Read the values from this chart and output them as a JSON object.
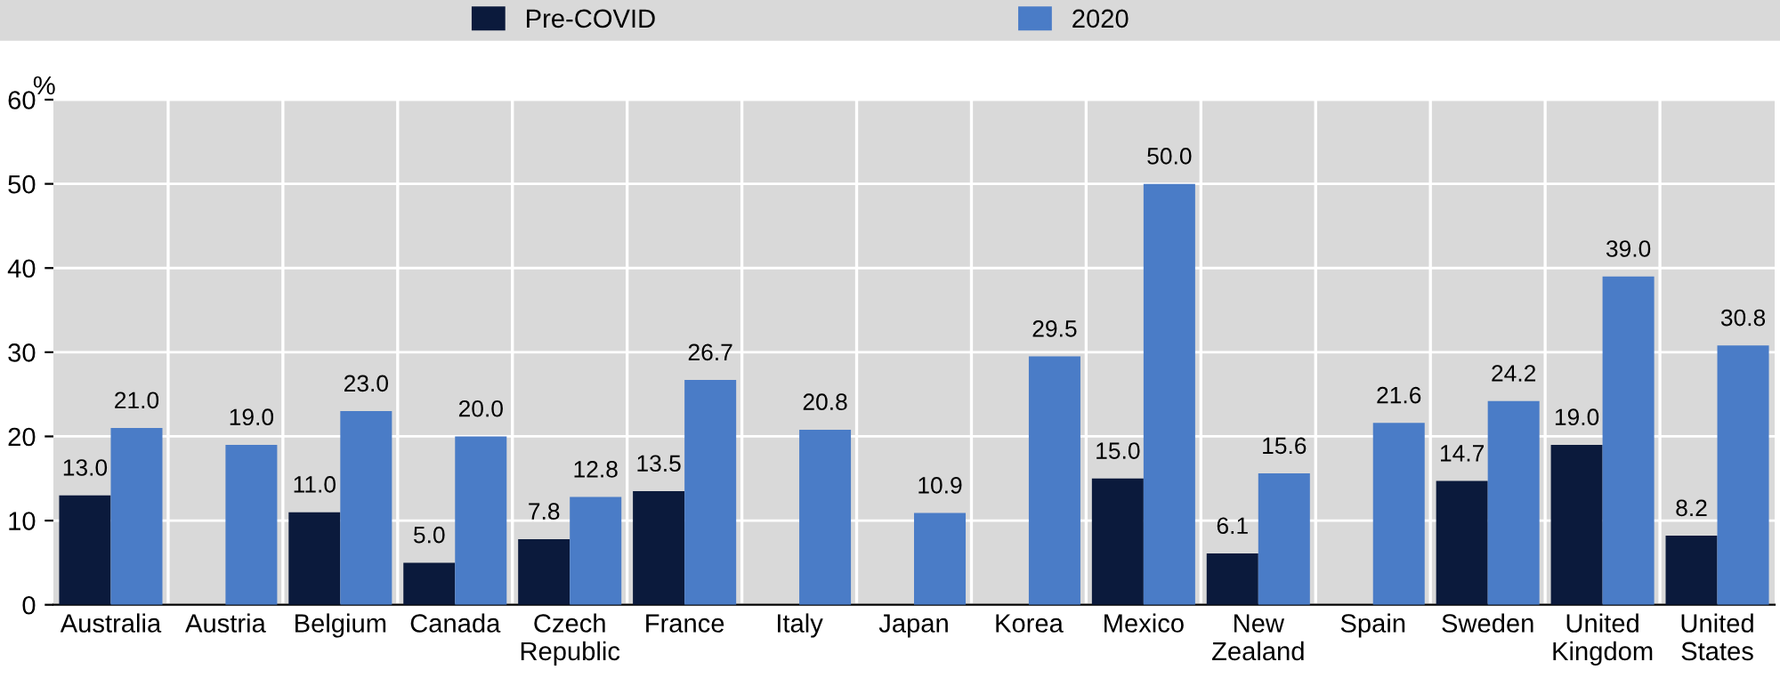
{
  "chart_data": {
    "type": "bar",
    "ylabel": "%",
    "categories": [
      "Australia",
      "Austria",
      "Belgium",
      "Canada",
      "Czech Republic",
      "France",
      "Italy",
      "Japan",
      "Korea",
      "Mexico",
      "New Zealand",
      "Spain",
      "Sweden",
      "United Kingdom",
      "United States"
    ],
    "series": [
      {
        "name": "Pre-COVID",
        "color": "#0b1a3c",
        "values": [
          13.0,
          null,
          11.0,
          5.0,
          7.8,
          13.5,
          null,
          null,
          null,
          15.0,
          6.1,
          null,
          14.7,
          19.0,
          8.2
        ],
        "value_labels": [
          "13.0",
          null,
          "11.0",
          "5.0",
          "7.8",
          "13.5",
          null,
          null,
          null,
          "15.0",
          "6.1",
          null,
          "14.7",
          "19.0",
          "8.2"
        ]
      },
      {
        "name": "2020",
        "color": "#4a7cc7",
        "values": [
          21.0,
          19.0,
          23.0,
          20.0,
          12.8,
          26.7,
          20.8,
          10.9,
          29.5,
          50.0,
          15.6,
          21.6,
          24.2,
          39.0,
          30.8
        ],
        "value_labels": [
          "21.0",
          "19.0",
          "23.0",
          "20.0",
          "12.8",
          "26.7",
          "20.8",
          "10.9",
          "29.5",
          "50.0",
          "15.6",
          "21.6",
          "24.2",
          "39.0",
          "30.8"
        ]
      }
    ],
    "ylim": [
      0,
      60
    ],
    "yticks": [
      0,
      10,
      20,
      30,
      40,
      50,
      60
    ],
    "grid": true,
    "legend": "top"
  }
}
